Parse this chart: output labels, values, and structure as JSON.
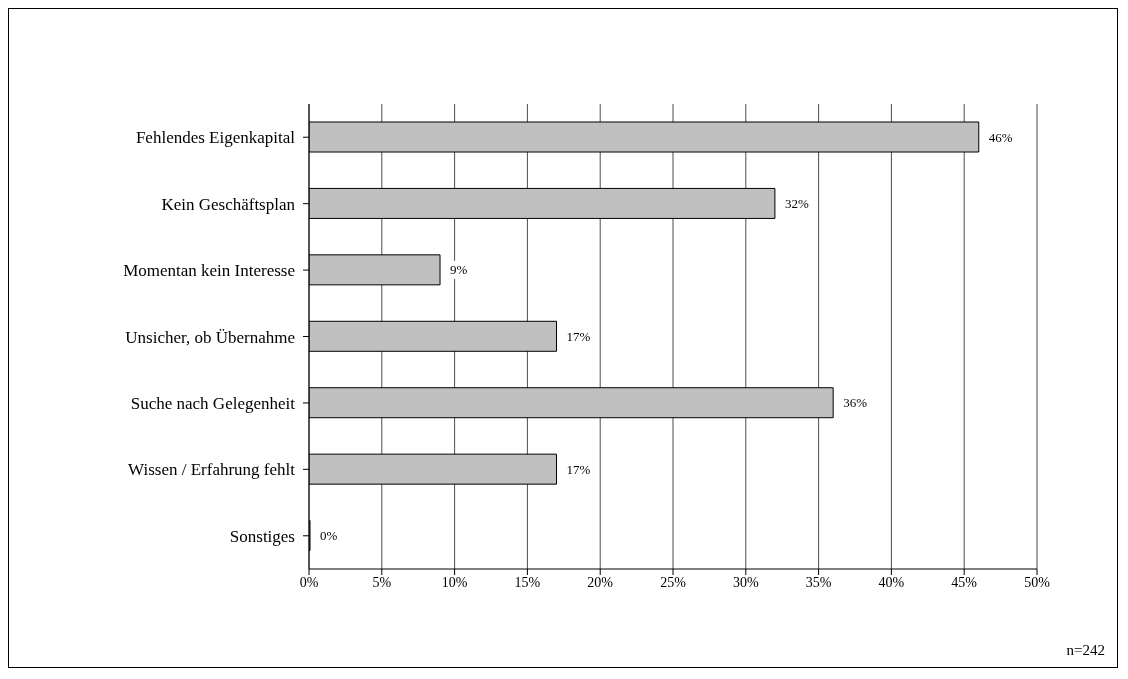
{
  "chart_data": {
    "type": "bar",
    "orientation": "horizontal",
    "categories": [
      "Fehlendes Eigenkapital",
      "Kein Geschäftsplan",
      "Momentan kein Interesse",
      "Unsicher, ob Übernahme",
      "Suche nach Gelegenheit",
      "Wissen / Erfahrung fehlt",
      "Sonstiges"
    ],
    "values": [
      46,
      32,
      9,
      17,
      36,
      17,
      0
    ],
    "value_labels": [
      "46%",
      "32%",
      "9%",
      "17%",
      "36%",
      "17%",
      "0%"
    ],
    "color": "#c0c0c0",
    "xlim": [
      0,
      50
    ],
    "xticks": [
      {
        "value": 0,
        "label": "0%"
      },
      {
        "value": 5,
        "label": "5%"
      },
      {
        "value": 10,
        "label": "10%"
      },
      {
        "value": 15,
        "label": "15%"
      },
      {
        "value": 20,
        "label": "20%"
      },
      {
        "value": 25,
        "label": "25%"
      },
      {
        "value": 30,
        "label": "30%"
      },
      {
        "value": 35,
        "label": "35%"
      },
      {
        "value": 40,
        "label": "40%"
      },
      {
        "value": 45,
        "label": "45%"
      },
      {
        "value": 50,
        "label": "50%"
      }
    ],
    "grid": "x",
    "annotations": [
      "n=242"
    ]
  }
}
